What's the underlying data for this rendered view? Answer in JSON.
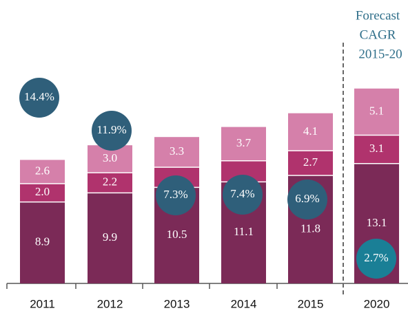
{
  "chart_data": {
    "type": "stacked_bar",
    "categories": [
      "2011",
      "2012",
      "2013",
      "2014",
      "2015",
      "2020"
    ],
    "series": [
      {
        "color": "#7b2a57",
        "values": [
          8.9,
          9.9,
          10.5,
          11.1,
          11.8,
          13.1
        ],
        "value_labels": [
          "8.9",
          "9.9",
          "10.5",
          "11.1",
          "11.8",
          "13.1"
        ]
      },
      {
        "color": "#b0336d",
        "values": [
          2.0,
          2.2,
          2.2,
          2.3,
          2.7,
          3.1
        ],
        "value_labels": [
          "2.0",
          "2.2",
          "",
          "",
          "2.7",
          "3.1"
        ]
      },
      {
        "color": "#d580aa",
        "values": [
          2.6,
          3.0,
          3.3,
          3.7,
          4.1,
          5.1
        ],
        "value_labels": [
          "2.6",
          "3.0",
          "3.3",
          "3.7",
          "4.1",
          "5.1"
        ]
      }
    ],
    "growth": {
      "values": [
        14.4,
        11.9,
        7.3,
        7.4,
        6.9,
        2.7
      ],
      "value_labels": [
        "14.4%",
        "11.9%",
        "7.3%",
        "7.4%",
        "6.9%",
        "2.7%"
      ],
      "color": "#2f5f7a",
      "forecast_color": "#1a7f96"
    },
    "annotation": [
      "Forecast",
      "CAGR",
      "2015-20"
    ]
  }
}
